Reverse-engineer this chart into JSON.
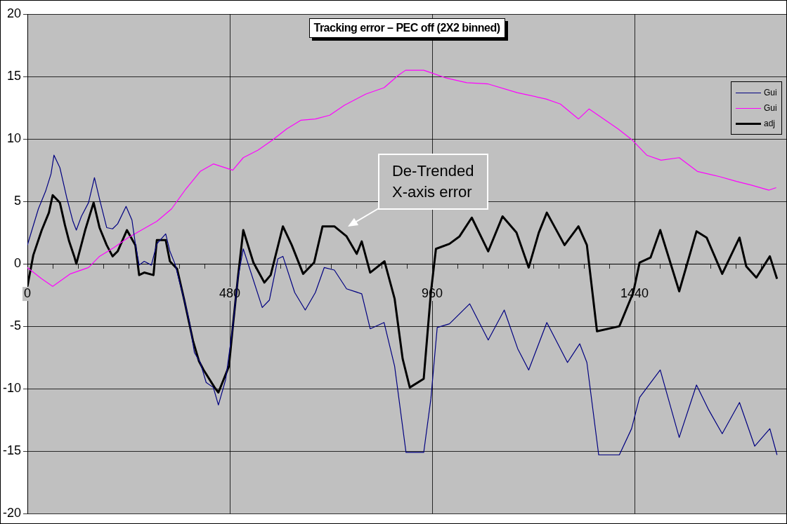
{
  "chart_data": {
    "type": "line",
    "title": "Tracking error – PEC off (2X2 binned)",
    "xlim": [
      0,
      1800
    ],
    "ylim": [
      -20,
      20
    ],
    "xticks": [
      0,
      {
        "value": 60,
        "label": null
      },
      {
        "value": 120,
        "label": null
      },
      {
        "value": 180,
        "label": null
      },
      {
        "value": 240,
        "label": null
      },
      {
        "value": 300,
        "label": null
      },
      {
        "value": 360,
        "label": null
      },
      {
        "value": 420,
        "label": null
      },
      480,
      {
        "value": 540,
        "label": null
      },
      {
        "value": 600,
        "label": null
      },
      {
        "value": 660,
        "label": null
      },
      {
        "value": 720,
        "label": null
      },
      {
        "value": 780,
        "label": null
      },
      {
        "value": 840,
        "label": null
      },
      {
        "value": 900,
        "label": null
      },
      960,
      {
        "value": 1020,
        "label": null
      },
      {
        "value": 1080,
        "label": null
      },
      {
        "value": 1140,
        "label": null
      },
      {
        "value": 1200,
        "label": null
      },
      {
        "value": 1260,
        "label": null
      },
      {
        "value": 1320,
        "label": null
      },
      {
        "value": 1380,
        "label": null
      },
      1440,
      {
        "value": 1500,
        "label": null
      },
      {
        "value": 1560,
        "label": null
      },
      {
        "value": 1620,
        "label": null
      },
      {
        "value": 1680,
        "label": null
      },
      {
        "value": 1740,
        "label": null
      }
    ],
    "yticks": [
      -20,
      -15,
      -10,
      -5,
      0,
      5,
      10,
      15,
      20
    ],
    "grid": true,
    "legend": "top right",
    "marker": "none",
    "line_style": "solid",
    "annotations": [
      "De-Trended\nX-axis error"
    ],
    "series": [
      {
        "name": "Gui",
        "color": "#000080",
        "x": [
          0,
          26,
          43,
          56,
          63,
          77,
          94,
          108,
          116,
          128,
          145,
          159,
          171,
          188,
          202,
          214,
          234,
          248,
          256,
          265,
          277,
          294,
          307,
          328,
          338,
          350,
          359,
          372,
          384,
          396,
          410,
          424,
          441,
          453,
          470,
          487,
          499,
          512,
          557,
          574,
          594,
          606,
          634,
          659,
          683,
          704,
          728,
          757,
          793,
          813,
          846,
          871,
          898,
          940,
          957,
          972,
          1001,
          1049,
          1093,
          1131,
          1163,
          1189,
          1232,
          1281,
          1310,
          1327,
          1355,
          1404,
          1433,
          1452,
          1501,
          1546,
          1587,
          1616,
          1648,
          1689,
          1725,
          1761,
          1778
        ],
        "values": [
          1.5,
          4.4,
          5.8,
          7.2,
          8.7,
          7.7,
          5.2,
          3.4,
          2.7,
          3.8,
          4.9,
          6.9,
          5.2,
          2.9,
          2.8,
          3.2,
          4.6,
          3.5,
          1.6,
          -0.1,
          0.2,
          -0.1,
          1.6,
          2.4,
          1.0,
          0,
          -1.2,
          -2.9,
          -4.6,
          -7.1,
          -7.9,
          -9.5,
          -9.9,
          -11.3,
          -9.3,
          -5.1,
          -1.2,
          1.2,
          -3.5,
          -2.9,
          0.4,
          0.6,
          -2.3,
          -3.7,
          -2.3,
          -0.3,
          -0.5,
          -2.0,
          -2.4,
          -5.2,
          -4.7,
          -8.2,
          -15.1,
          -15.1,
          -10.8,
          -5.1,
          -4.8,
          -3.2,
          -6.1,
          -3.7,
          -6.8,
          -8.5,
          -4.7,
          -7.9,
          -6.4,
          -7.9,
          -15.3,
          -15.3,
          -13.2,
          -10.7,
          -8.5,
          -13.9,
          -9.7,
          -11.7,
          -13.6,
          -11.1,
          -14.6,
          -13.2,
          -15.3
        ]
      },
      {
        "name": "Gui",
        "color": "#ff00ff",
        "x": [
          0,
          34,
          60,
          102,
          145,
          171,
          205,
          239,
          307,
          342,
          376,
          410,
          441,
          487,
          512,
          547,
          581,
          615,
          649,
          683,
          717,
          752,
          803,
          846,
          880,
          897,
          940,
          957,
          991,
          1042,
          1093,
          1162,
          1230,
          1264,
          1307,
          1332,
          1401,
          1435,
          1469,
          1503,
          1546,
          1589,
          1640,
          1682,
          1717,
          1759,
          1776
        ],
        "values": [
          -0.3,
          -1.2,
          -1.8,
          -0.8,
          -0.3,
          0.6,
          1.3,
          2.1,
          3.4,
          4.4,
          6.0,
          7.4,
          8.0,
          7.5,
          8.5,
          9.1,
          9.9,
          10.8,
          11.5,
          11.6,
          11.9,
          12.7,
          13.6,
          14.1,
          15.1,
          15.5,
          15.5,
          15.3,
          14.9,
          14.5,
          14.4,
          13.7,
          13.2,
          12.8,
          11.6,
          12.4,
          10.8,
          9.9,
          8.7,
          8.3,
          8.5,
          7.4,
          7.0,
          6.6,
          6.3,
          5.9,
          6.1
        ]
      },
      {
        "name": "adj",
        "color": "#000000",
        "x": [
          0,
          14,
          34,
          51,
          60,
          77,
          89,
          99,
          111,
          116,
          137,
          157,
          171,
          188,
          202,
          214,
          236,
          256,
          265,
          277,
          299,
          307,
          328,
          338,
          355,
          372,
          393,
          407,
          418,
          444,
          453,
          478,
          487,
          499,
          512,
          536,
          562,
          577,
          606,
          627,
          654,
          680,
          700,
          728,
          757,
          781,
          793,
          813,
          847,
          871,
          890,
          907,
          940,
          957,
          969,
          1001,
          1025,
          1054,
          1093,
          1127,
          1160,
          1189,
          1213,
          1232,
          1274,
          1307,
          1327,
          1351,
          1404,
          1437,
          1452,
          1478,
          1501,
          1546,
          1587,
          1611,
          1648,
          1689,
          1705,
          1729,
          1761,
          1778
        ],
        "values": [
          -1.8,
          0.7,
          2.7,
          4.1,
          5.5,
          4.9,
          3.1,
          1.8,
          0.6,
          0,
          2.7,
          4.9,
          2.9,
          1.5,
          0.6,
          1.0,
          2.7,
          1.5,
          -0.9,
          -0.7,
          -0.9,
          1.9,
          1.9,
          0.2,
          -0.4,
          -2.9,
          -6.2,
          -7.8,
          -8.5,
          -9.9,
          -10.3,
          -8.2,
          -5.1,
          -1.2,
          2.7,
          0.1,
          -1.5,
          -0.9,
          3.0,
          1.5,
          -0.8,
          0.1,
          3.0,
          3.0,
          2.2,
          0.8,
          1.8,
          -0.7,
          0.2,
          -2.8,
          -7.6,
          -9.9,
          -9.2,
          -2.3,
          1.2,
          1.6,
          2.2,
          3.7,
          1.0,
          3.8,
          2.5,
          -0.3,
          2.5,
          4.1,
          1.5,
          3.0,
          1.5,
          -5.4,
          -5.0,
          -2.3,
          0.1,
          0.5,
          2.7,
          -2.2,
          2.6,
          2.1,
          -0.8,
          2.1,
          -0.2,
          -1.1,
          0.6,
          -1.2
        ]
      }
    ]
  }
}
